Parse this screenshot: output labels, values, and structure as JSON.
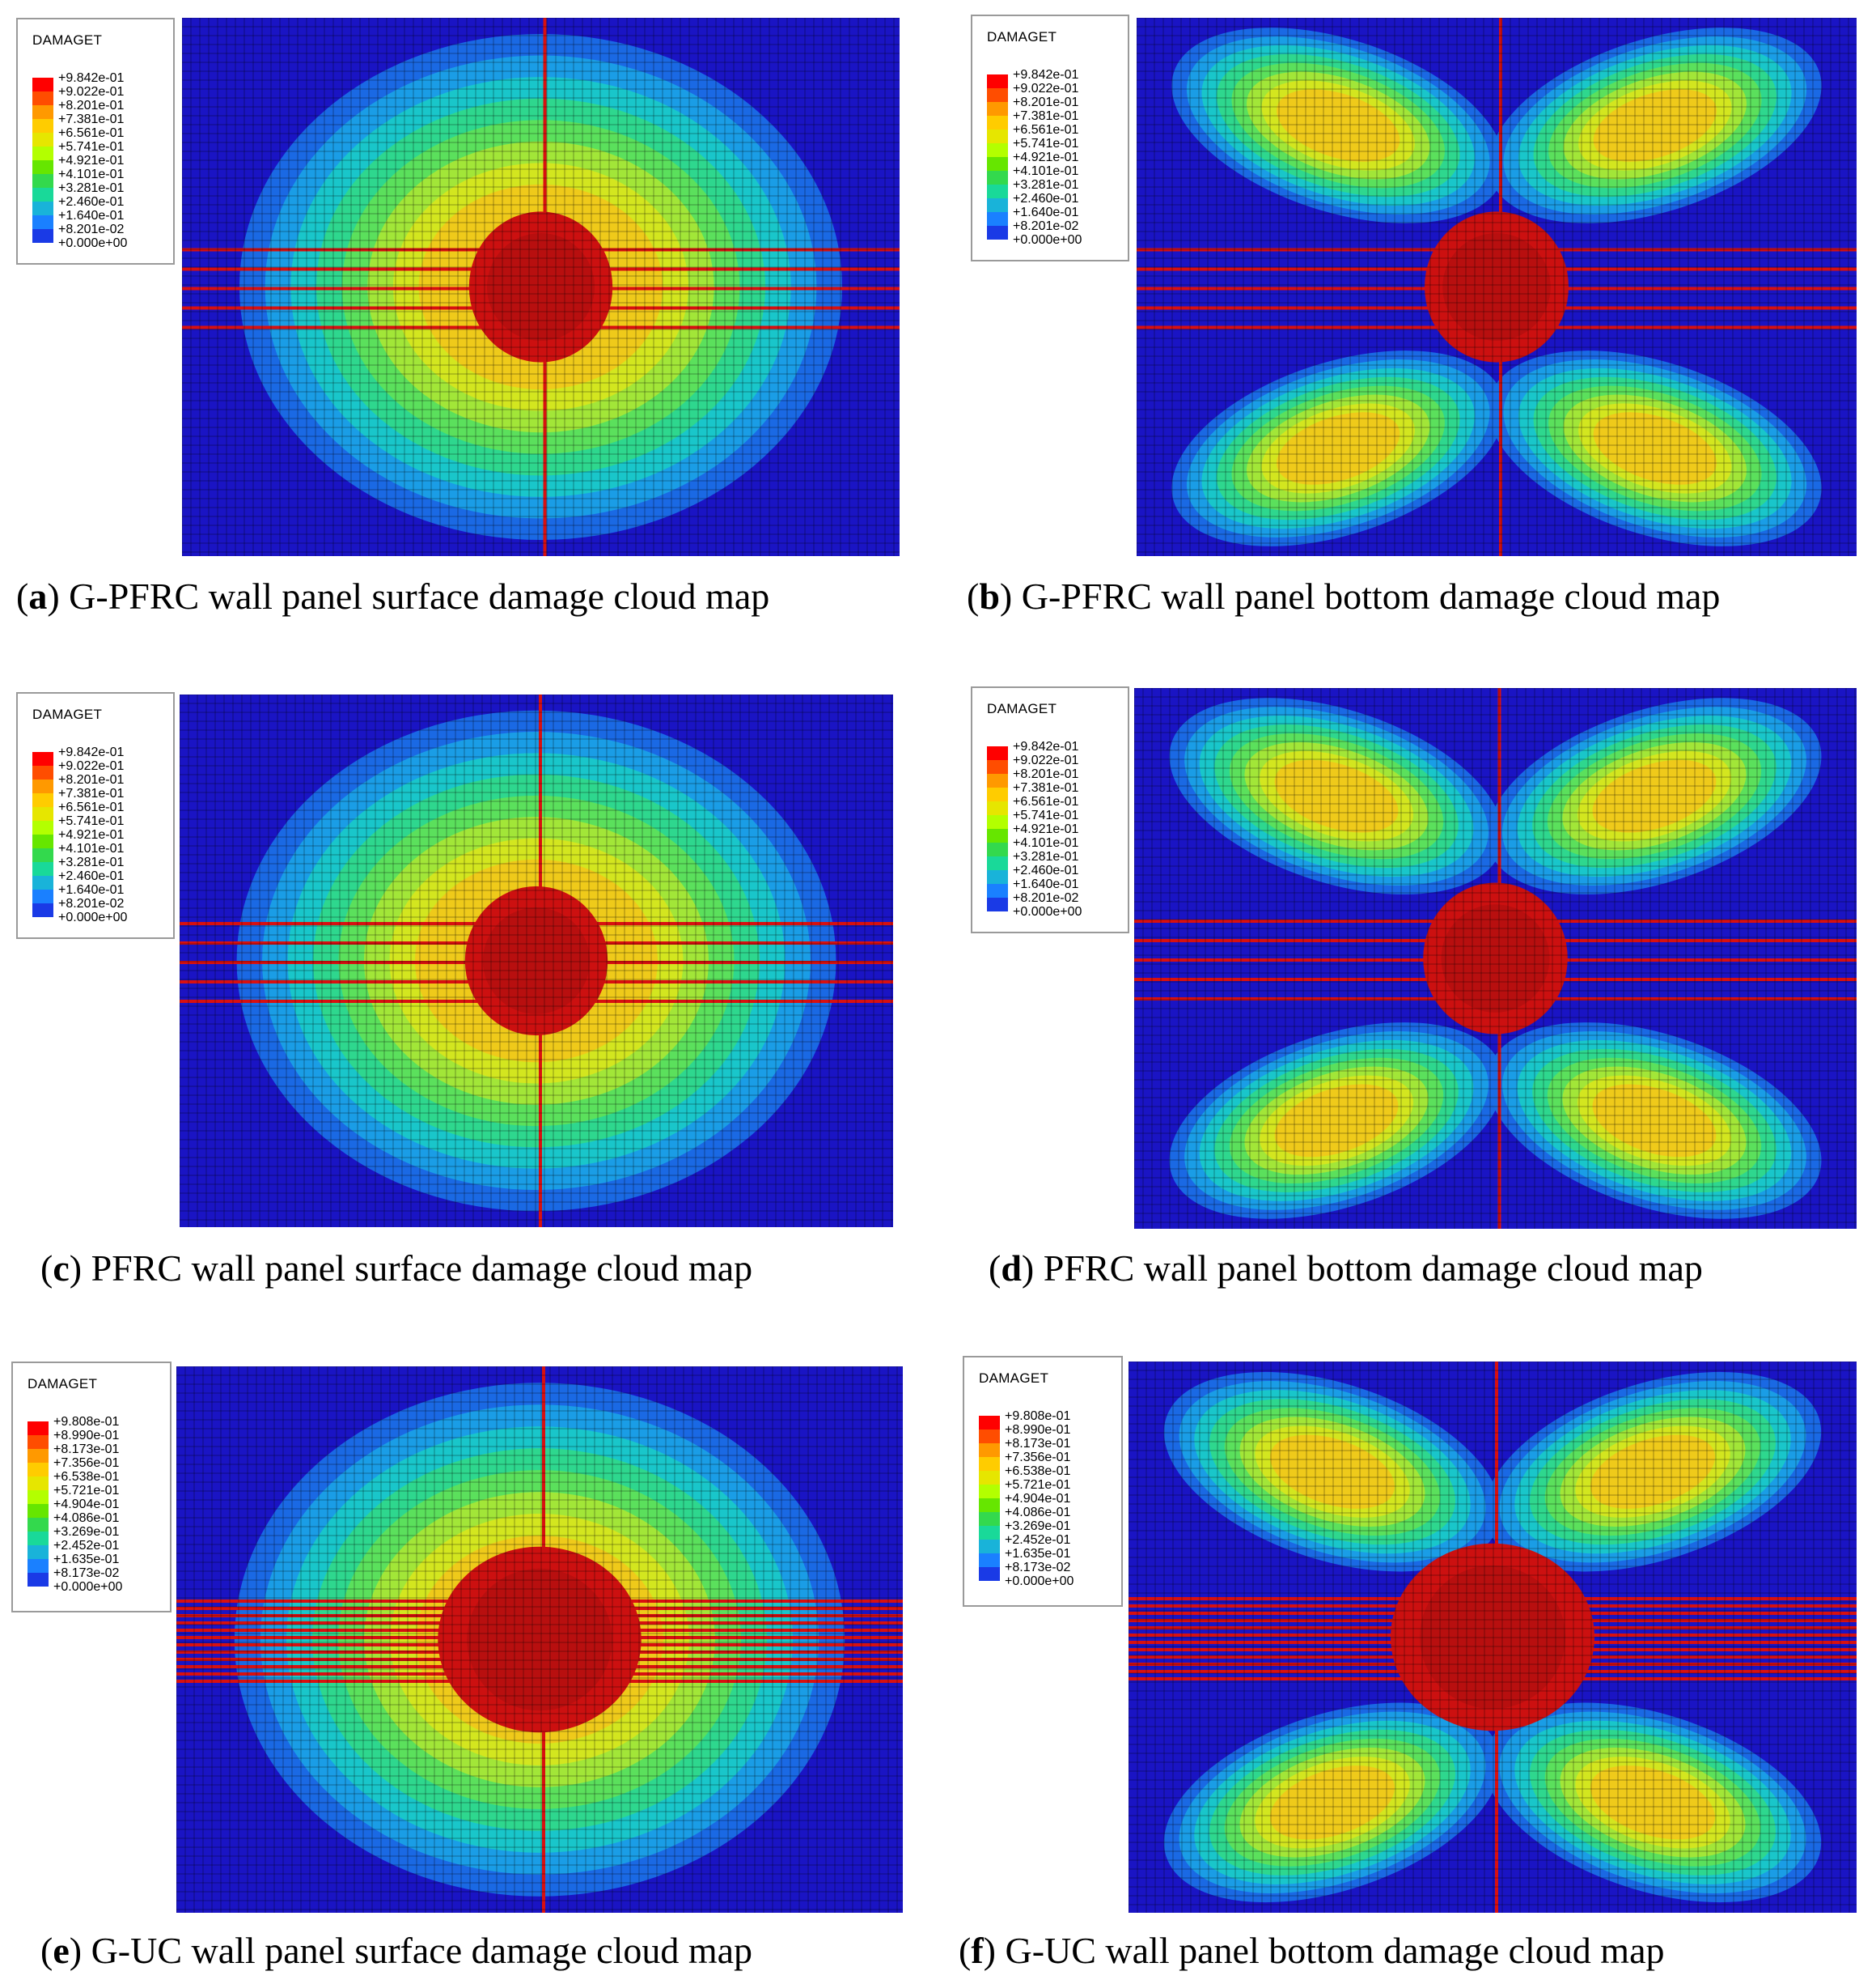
{
  "panels": [
    {
      "letter": "a",
      "caption": "G-PFRC wall panel surface damage cloud map",
      "legend_title": "DAMAGET",
      "legend_values": [
        "+9.842e-01",
        "+9.022e-01",
        "+8.201e-01",
        "+7.381e-01",
        "+6.561e-01",
        "+5.741e-01",
        "+4.921e-01",
        "+4.101e-01",
        "+3.281e-01",
        "+2.460e-01",
        "+1.640e-01",
        "+8.201e-02",
        "+0.000e+00"
      ]
    },
    {
      "letter": "b",
      "caption": "G-PFRC wall panel bottom damage cloud map",
      "legend_title": "DAMAGET",
      "legend_values": [
        "+9.842e-01",
        "+9.022e-01",
        "+8.201e-01",
        "+7.381e-01",
        "+6.561e-01",
        "+5.741e-01",
        "+4.921e-01",
        "+4.101e-01",
        "+3.281e-01",
        "+2.460e-01",
        "+1.640e-01",
        "+8.201e-02",
        "+0.000e+00"
      ]
    },
    {
      "letter": "c",
      "caption": "PFRC wall panel surface damage cloud map",
      "legend_title": "DAMAGET",
      "legend_values": [
        "+9.842e-01",
        "+9.022e-01",
        "+8.201e-01",
        "+7.381e-01",
        "+6.561e-01",
        "+5.741e-01",
        "+4.921e-01",
        "+4.101e-01",
        "+3.281e-01",
        "+2.460e-01",
        "+1.640e-01",
        "+8.201e-02",
        "+0.000e+00"
      ]
    },
    {
      "letter": "d",
      "caption": "PFRC wall panel bottom damage cloud map",
      "legend_title": "DAMAGET",
      "legend_values": [
        "+9.842e-01",
        "+9.022e-01",
        "+8.201e-01",
        "+7.381e-01",
        "+6.561e-01",
        "+5.741e-01",
        "+4.921e-01",
        "+4.101e-01",
        "+3.281e-01",
        "+2.460e-01",
        "+1.640e-01",
        "+8.201e-02",
        "+0.000e+00"
      ]
    },
    {
      "letter": "e",
      "caption": "G-UC wall panel surface damage cloud map",
      "legend_title": "DAMAGET",
      "legend_values": [
        "+9.808e-01",
        "+8.990e-01",
        "+8.173e-01",
        "+7.356e-01",
        "+6.538e-01",
        "+5.721e-01",
        "+4.904e-01",
        "+4.086e-01",
        "+3.269e-01",
        "+2.452e-01",
        "+1.635e-01",
        "+8.173e-02",
        "+0.000e+00"
      ]
    },
    {
      "letter": "f",
      "caption": "G-UC wall panel bottom damage cloud map",
      "legend_title": "DAMAGET",
      "legend_values": [
        "+9.808e-01",
        "+8.990e-01",
        "+8.173e-01",
        "+7.356e-01",
        "+6.538e-01",
        "+5.721e-01",
        "+4.904e-01",
        "+4.086e-01",
        "+3.269e-01",
        "+2.452e-01",
        "+1.635e-01",
        "+8.173e-02",
        "+0.000e+00"
      ]
    }
  ],
  "colormap": [
    "#ff0000",
    "#ff4d00",
    "#ff9900",
    "#ffcc00",
    "#e6e600",
    "#b3ff00",
    "#66e600",
    "#33d94d",
    "#19d999",
    "#19b3d9",
    "#1a80ff",
    "#1a3ae6"
  ]
}
